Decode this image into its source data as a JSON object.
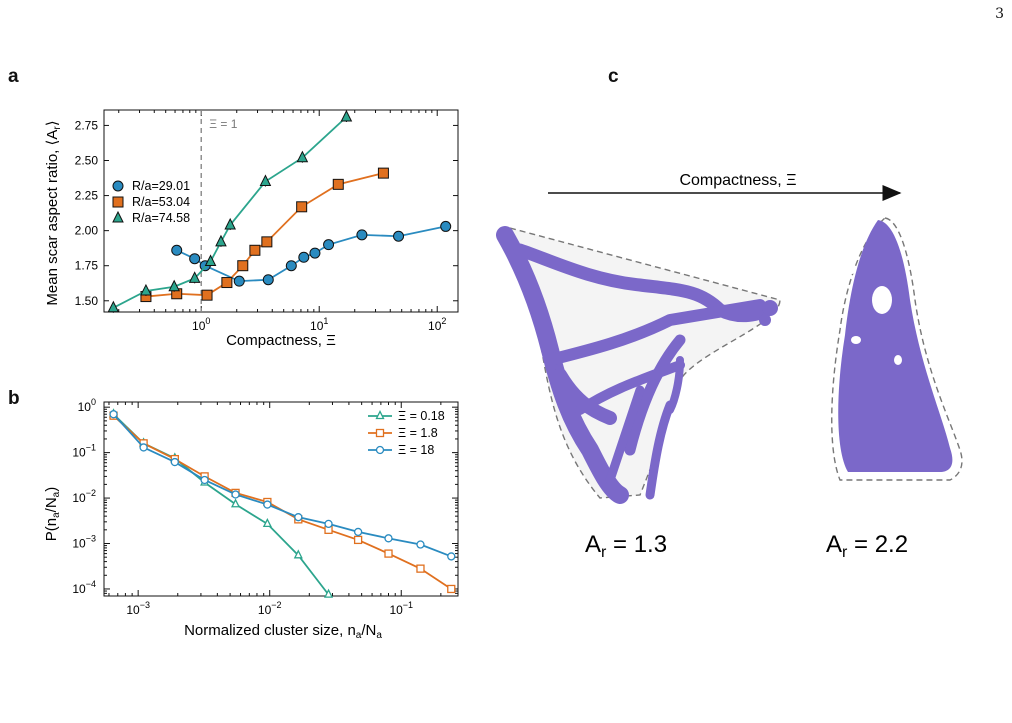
{
  "page_number": "3",
  "panel_labels": [
    "a",
    "b",
    "c"
  ],
  "colors": {
    "teal": "#2ca58d",
    "orange": "#e0701f",
    "blue": "#2a8bc0",
    "purple": "#7b68c9"
  },
  "chart_data": [
    {
      "id": "a",
      "type": "line",
      "xlabel": "Compactness, Ξ",
      "ylabel": "Mean scar aspect ratio, ⟨A_r⟩",
      "xscale": "log",
      "xlim": [
        0.15,
        150
      ],
      "ylim": [
        1.42,
        2.86
      ],
      "xticks": [
        {
          "v": 1,
          "l": "10^0"
        },
        {
          "v": 10,
          "l": "10^1"
        },
        {
          "v": 100,
          "l": "10^2"
        }
      ],
      "yticks": [
        "1.50",
        "1.75",
        "2.00",
        "2.25",
        "2.50",
        "2.75"
      ],
      "vline": {
        "x": 1,
        "label": "Ξ = 1"
      },
      "legend_position": "center-left",
      "series": [
        {
          "name": "R/a=29.01",
          "marker": "circle",
          "color": "#2a8bc0",
          "x": [
            0.62,
            0.88,
            1.08,
            2.1,
            3.7,
            5.8,
            7.4,
            9.2,
            12,
            23,
            47,
            118
          ],
          "y": [
            1.86,
            1.8,
            1.75,
            1.64,
            1.65,
            1.75,
            1.81,
            1.84,
            1.9,
            1.97,
            1.96,
            2.03
          ]
        },
        {
          "name": "R/a=53.04",
          "marker": "square",
          "color": "#e0701f",
          "x": [
            0.34,
            0.62,
            1.12,
            1.65,
            2.25,
            2.85,
            3.6,
            7.1,
            14.5,
            35
          ],
          "y": [
            1.53,
            1.55,
            1.54,
            1.63,
            1.75,
            1.86,
            1.92,
            2.17,
            2.33,
            2.41
          ]
        },
        {
          "name": "R/a=74.58",
          "marker": "triangle",
          "color": "#2ca58d",
          "x": [
            0.18,
            0.34,
            0.59,
            0.88,
            1.2,
            1.47,
            1.76,
            3.5,
            7.2,
            17
          ],
          "y": [
            1.45,
            1.57,
            1.6,
            1.66,
            1.78,
            1.92,
            2.04,
            2.35,
            2.52,
            2.81
          ]
        }
      ]
    },
    {
      "id": "b",
      "type": "line",
      "xlabel": "Normalized cluster size, n_a/N_a",
      "ylabel": "P(n_a/N_a)",
      "xscale": "log",
      "yscale": "log",
      "xlim": [
        0.00055,
        0.27
      ],
      "ylim": [
        7e-05,
        1.3
      ],
      "xticks": [
        {
          "v": 0.001,
          "l": "10^-3"
        },
        {
          "v": 0.01,
          "l": "10^-2"
        },
        {
          "v": 0.1,
          "l": "10^-1"
        }
      ],
      "yticks": [
        {
          "v": 1,
          "l": "10^0"
        },
        {
          "v": 0.1,
          "l": "10^-1"
        },
        {
          "v": 0.01,
          "l": "10^-2"
        },
        {
          "v": 0.001,
          "l": "10^-3"
        },
        {
          "v": 0.0001,
          "l": "10^-4"
        }
      ],
      "legend_position": "top-right",
      "series": [
        {
          "name": "Ξ = 0.18",
          "marker": "triangle-open",
          "color": "#2ca58d",
          "x": [
            0.00065,
            0.0011,
            0.0019,
            0.0032,
            0.0055,
            0.0096,
            0.0165,
            0.028
          ],
          "y": [
            0.7,
            0.16,
            0.075,
            0.022,
            0.0073,
            0.0027,
            0.00055,
            7.5e-05
          ]
        },
        {
          "name": "Ξ = 1.8",
          "marker": "square-open",
          "color": "#e0701f",
          "x": [
            0.00065,
            0.0011,
            0.0019,
            0.0032,
            0.0055,
            0.0096,
            0.0165,
            0.028,
            0.047,
            0.08,
            0.14,
            0.24
          ],
          "y": [
            0.65,
            0.16,
            0.072,
            0.03,
            0.013,
            0.0082,
            0.0034,
            0.002,
            0.0012,
            0.0006,
            0.00028,
            0.0001
          ]
        },
        {
          "name": "Ξ = 18",
          "marker": "circle-open",
          "color": "#2a8bc0",
          "x": [
            0.00065,
            0.0011,
            0.0019,
            0.0032,
            0.0055,
            0.0096,
            0.0165,
            0.028,
            0.047,
            0.08,
            0.14,
            0.24
          ],
          "y": [
            0.7,
            0.13,
            0.062,
            0.025,
            0.012,
            0.0072,
            0.0038,
            0.0027,
            0.0018,
            0.0013,
            0.00095,
            0.00052
          ]
        }
      ]
    }
  ],
  "panel_c": {
    "arrow_label": "Compactness, Ξ",
    "left_shape_label": "A",
    "left_shape_sub": "r",
    "left_shape_value": " = 1.3",
    "right_shape_label": "A",
    "right_shape_sub": "r",
    "right_shape_value": " = 2.2"
  }
}
